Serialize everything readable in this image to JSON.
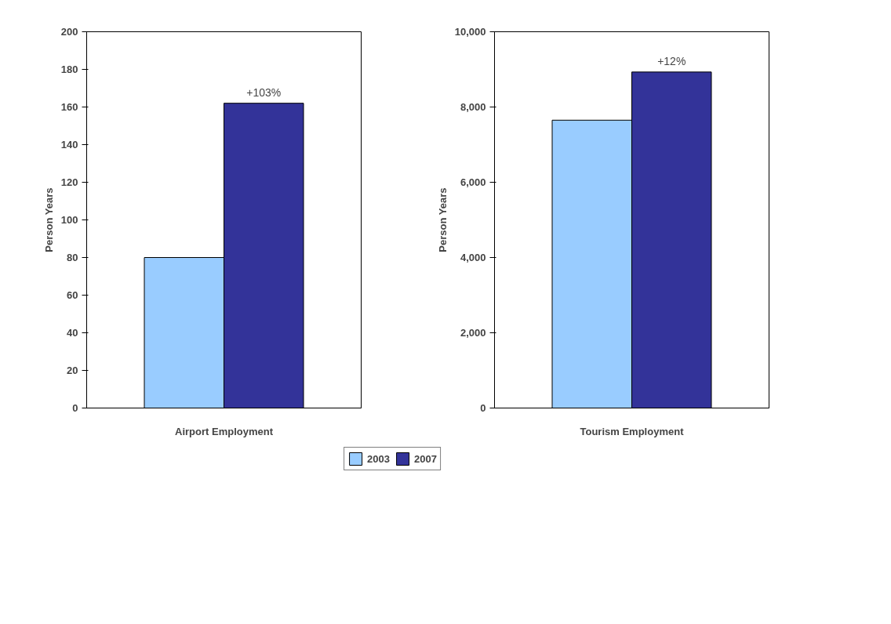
{
  "chart_data": [
    {
      "type": "bar",
      "categories": [
        "Airport Employment"
      ],
      "ylabel": "Person Years",
      "ylim": [
        0,
        200
      ],
      "yticks": [
        0,
        20,
        40,
        60,
        80,
        100,
        120,
        140,
        160,
        180,
        200
      ],
      "grid": false,
      "legend": "bottom",
      "series": [
        {
          "name": "2003",
          "color": "#99ccff",
          "values": [
            80
          ]
        },
        {
          "name": "2007",
          "color": "#333399",
          "values": [
            162
          ]
        }
      ],
      "annotations": [
        "+103%"
      ]
    },
    {
      "type": "bar",
      "categories": [
        "Tourism Employment"
      ],
      "ylabel": "Person Years",
      "ylim": [
        0,
        10000
      ],
      "yticks": [
        0,
        {
          "value": 2000,
          "label": "2,000"
        },
        {
          "value": 4000,
          "label": "4,000"
        },
        {
          "value": 6000,
          "label": "6,000"
        },
        {
          "value": 8000,
          "label": "8,000"
        },
        {
          "value": 10000,
          "label": "10,000"
        }
      ],
      "grid": false,
      "series": [
        {
          "color": "#99ccff",
          "values": [
            7650
          ]
        },
        {
          "color": "#333399",
          "values": [
            8930
          ]
        }
      ],
      "annotations": [
        "+12%"
      ]
    }
  ]
}
